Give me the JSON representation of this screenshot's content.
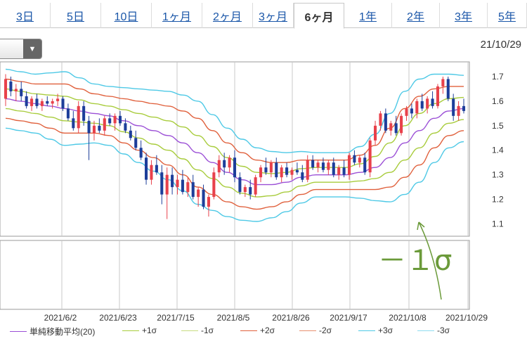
{
  "tabs": [
    {
      "label": "3日",
      "active": false
    },
    {
      "label": "5日",
      "active": false
    },
    {
      "label": "10日",
      "active": false
    },
    {
      "label": "1ヶ月",
      "active": false
    },
    {
      "label": "2ヶ月",
      "active": false
    },
    {
      "label": "3ヶ月",
      "active": false
    },
    {
      "label": "6ヶ月",
      "active": true
    },
    {
      "label": "1年",
      "active": false
    },
    {
      "label": "2年",
      "active": false
    },
    {
      "label": "3年",
      "active": false
    },
    {
      "label": "5年",
      "active": false
    }
  ],
  "header": {
    "date": "21/10/29",
    "select_arrow": "▼"
  },
  "annotation": {
    "text": "－１σ",
    "color": "#6b9a3a"
  },
  "colors": {
    "up": "#e8414b",
    "down": "#1d3e9a",
    "sma": "#9b4fd6",
    "s1": "#a8cc3c",
    "s2": "#e0603c",
    "s3": "#4ec9e6",
    "grid": "#c8c8c8",
    "frame": "#9a9a9a"
  },
  "legend": [
    {
      "label": "単純移動平均(20)",
      "color": "#9b4fd6"
    },
    {
      "label": "+1σ",
      "color": "#a8cc3c"
    },
    {
      "label": "-1σ",
      "color": "#c8dc80"
    },
    {
      "label": "+2σ",
      "color": "#e0603c"
    },
    {
      "label": "-2σ",
      "color": "#e89070"
    },
    {
      "label": "+3σ",
      "color": "#4ec9e6"
    },
    {
      "label": "-3σ",
      "color": "#8edcef"
    }
  ],
  "chart_data": {
    "type": "candlestick",
    "x_tick_labels": [
      "2021/6/2",
      "2021/6/23",
      "2021/7/15",
      "2021/8/5",
      "2021/8/26",
      "2021/9/17",
      "2021/10/8",
      "2021/10/29"
    ],
    "y_tick_labels": [
      "1.7",
      "1.6",
      "1.5",
      "1.4",
      "1.3",
      "1.2",
      "1.1"
    ],
    "ylim": [
      1.05,
      1.76
    ],
    "grid": true,
    "legend_position": "bottom",
    "sma20": [
      1.61,
      1.6,
      1.59,
      1.58,
      1.57,
      1.56,
      1.55,
      1.54,
      1.52,
      1.5,
      1.48,
      1.46,
      1.43,
      1.39,
      1.35,
      1.31,
      1.28,
      1.26,
      1.26,
      1.27,
      1.29,
      1.3,
      1.3,
      1.3,
      1.31,
      1.33,
      1.37,
      1.43,
      1.48,
      1.53,
      1.56,
      1.57
    ],
    "sigma": [
      0.04,
      0.04,
      0.04,
      0.045,
      0.05,
      0.045,
      0.04,
      0.04,
      0.045,
      0.05,
      0.055,
      0.06,
      0.065,
      0.07,
      0.065,
      0.06,
      0.055,
      0.05,
      0.045,
      0.04,
      0.035,
      0.03,
      0.03,
      0.03,
      0.035,
      0.045,
      0.06,
      0.07,
      0.07,
      0.06,
      0.05,
      0.045
    ],
    "candles": [
      {
        "o": 1.61,
        "h": 1.71,
        "l": 1.58,
        "c": 1.69
      },
      {
        "o": 1.68,
        "h": 1.7,
        "l": 1.62,
        "c": 1.64
      },
      {
        "o": 1.64,
        "h": 1.67,
        "l": 1.6,
        "c": 1.65
      },
      {
        "o": 1.65,
        "h": 1.68,
        "l": 1.6,
        "c": 1.62
      },
      {
        "o": 1.62,
        "h": 1.64,
        "l": 1.57,
        "c": 1.58
      },
      {
        "o": 1.58,
        "h": 1.62,
        "l": 1.56,
        "c": 1.61
      },
      {
        "o": 1.61,
        "h": 1.63,
        "l": 1.57,
        "c": 1.58
      },
      {
        "o": 1.58,
        "h": 1.61,
        "l": 1.56,
        "c": 1.6
      },
      {
        "o": 1.6,
        "h": 1.62,
        "l": 1.58,
        "c": 1.59
      },
      {
        "o": 1.59,
        "h": 1.61,
        "l": 1.57,
        "c": 1.6
      },
      {
        "o": 1.6,
        "h": 1.63,
        "l": 1.58,
        "c": 1.61
      },
      {
        "o": 1.61,
        "h": 1.62,
        "l": 1.56,
        "c": 1.57
      },
      {
        "o": 1.57,
        "h": 1.59,
        "l": 1.52,
        "c": 1.53
      },
      {
        "o": 1.53,
        "h": 1.56,
        "l": 1.48,
        "c": 1.49
      },
      {
        "o": 1.49,
        "h": 1.6,
        "l": 1.47,
        "c": 1.58
      },
      {
        "o": 1.58,
        "h": 1.6,
        "l": 1.5,
        "c": 1.52
      },
      {
        "o": 1.52,
        "h": 1.54,
        "l": 1.36,
        "c": 1.47
      },
      {
        "o": 1.47,
        "h": 1.52,
        "l": 1.44,
        "c": 1.5
      },
      {
        "o": 1.5,
        "h": 1.53,
        "l": 1.47,
        "c": 1.48
      },
      {
        "o": 1.48,
        "h": 1.54,
        "l": 1.46,
        "c": 1.53
      },
      {
        "o": 1.53,
        "h": 1.55,
        "l": 1.5,
        "c": 1.51
      },
      {
        "o": 1.51,
        "h": 1.55,
        "l": 1.48,
        "c": 1.54
      },
      {
        "o": 1.54,
        "h": 1.56,
        "l": 1.5,
        "c": 1.51
      },
      {
        "o": 1.51,
        "h": 1.53,
        "l": 1.47,
        "c": 1.48
      },
      {
        "o": 1.48,
        "h": 1.5,
        "l": 1.44,
        "c": 1.45
      },
      {
        "o": 1.45,
        "h": 1.48,
        "l": 1.4,
        "c": 1.41
      },
      {
        "o": 1.41,
        "h": 1.44,
        "l": 1.36,
        "c": 1.37
      },
      {
        "o": 1.37,
        "h": 1.39,
        "l": 1.26,
        "c": 1.28
      },
      {
        "o": 1.28,
        "h": 1.36,
        "l": 1.26,
        "c": 1.34
      },
      {
        "o": 1.34,
        "h": 1.38,
        "l": 1.3,
        "c": 1.31
      },
      {
        "o": 1.31,
        "h": 1.34,
        "l": 1.18,
        "c": 1.22
      },
      {
        "o": 1.22,
        "h": 1.33,
        "l": 1.12,
        "c": 1.3
      },
      {
        "o": 1.3,
        "h": 1.33,
        "l": 1.22,
        "c": 1.25
      },
      {
        "o": 1.25,
        "h": 1.3,
        "l": 1.22,
        "c": 1.28
      },
      {
        "o": 1.28,
        "h": 1.32,
        "l": 1.22,
        "c": 1.23
      },
      {
        "o": 1.23,
        "h": 1.29,
        "l": 1.21,
        "c": 1.27
      },
      {
        "o": 1.27,
        "h": 1.3,
        "l": 1.2,
        "c": 1.21
      },
      {
        "o": 1.21,
        "h": 1.25,
        "l": 1.17,
        "c": 1.24
      },
      {
        "o": 1.24,
        "h": 1.26,
        "l": 1.16,
        "c": 1.17
      },
      {
        "o": 1.17,
        "h": 1.22,
        "l": 1.13,
        "c": 1.21
      },
      {
        "o": 1.21,
        "h": 1.33,
        "l": 1.2,
        "c": 1.31
      },
      {
        "o": 1.31,
        "h": 1.38,
        "l": 1.29,
        "c": 1.36
      },
      {
        "o": 1.36,
        "h": 1.39,
        "l": 1.3,
        "c": 1.33
      },
      {
        "o": 1.33,
        "h": 1.38,
        "l": 1.31,
        "c": 1.37
      },
      {
        "o": 1.37,
        "h": 1.4,
        "l": 1.27,
        "c": 1.29
      },
      {
        "o": 1.29,
        "h": 1.31,
        "l": 1.22,
        "c": 1.23
      },
      {
        "o": 1.23,
        "h": 1.26,
        "l": 1.21,
        "c": 1.25
      },
      {
        "o": 1.25,
        "h": 1.28,
        "l": 1.2,
        "c": 1.22
      },
      {
        "o": 1.22,
        "h": 1.3,
        "l": 1.21,
        "c": 1.29
      },
      {
        "o": 1.29,
        "h": 1.34,
        "l": 1.27,
        "c": 1.33
      },
      {
        "o": 1.33,
        "h": 1.37,
        "l": 1.3,
        "c": 1.31
      },
      {
        "o": 1.31,
        "h": 1.36,
        "l": 1.29,
        "c": 1.35
      },
      {
        "o": 1.35,
        "h": 1.37,
        "l": 1.28,
        "c": 1.29
      },
      {
        "o": 1.29,
        "h": 1.34,
        "l": 1.27,
        "c": 1.33
      },
      {
        "o": 1.33,
        "h": 1.35,
        "l": 1.29,
        "c": 1.3
      },
      {
        "o": 1.3,
        "h": 1.33,
        "l": 1.28,
        "c": 1.32
      },
      {
        "o": 1.32,
        "h": 1.35,
        "l": 1.3,
        "c": 1.31
      },
      {
        "o": 1.31,
        "h": 1.34,
        "l": 1.27,
        "c": 1.28
      },
      {
        "o": 1.28,
        "h": 1.38,
        "l": 1.27,
        "c": 1.36
      },
      {
        "o": 1.36,
        "h": 1.38,
        "l": 1.32,
        "c": 1.33
      },
      {
        "o": 1.33,
        "h": 1.36,
        "l": 1.31,
        "c": 1.35
      },
      {
        "o": 1.35,
        "h": 1.37,
        "l": 1.31,
        "c": 1.32
      },
      {
        "o": 1.32,
        "h": 1.36,
        "l": 1.3,
        "c": 1.35
      },
      {
        "o": 1.35,
        "h": 1.37,
        "l": 1.29,
        "c": 1.3
      },
      {
        "o": 1.3,
        "h": 1.34,
        "l": 1.28,
        "c": 1.33
      },
      {
        "o": 1.33,
        "h": 1.36,
        "l": 1.29,
        "c": 1.3
      },
      {
        "o": 1.3,
        "h": 1.39,
        "l": 1.28,
        "c": 1.38
      },
      {
        "o": 1.38,
        "h": 1.4,
        "l": 1.34,
        "c": 1.35
      },
      {
        "o": 1.35,
        "h": 1.38,
        "l": 1.33,
        "c": 1.37
      },
      {
        "o": 1.37,
        "h": 1.39,
        "l": 1.3,
        "c": 1.31
      },
      {
        "o": 1.31,
        "h": 1.45,
        "l": 1.29,
        "c": 1.44
      },
      {
        "o": 1.44,
        "h": 1.52,
        "l": 1.42,
        "c": 1.5
      },
      {
        "o": 1.5,
        "h": 1.56,
        "l": 1.48,
        "c": 1.55
      },
      {
        "o": 1.55,
        "h": 1.57,
        "l": 1.47,
        "c": 1.48
      },
      {
        "o": 1.48,
        "h": 1.52,
        "l": 1.46,
        "c": 1.51
      },
      {
        "o": 1.51,
        "h": 1.54,
        "l": 1.46,
        "c": 1.47
      },
      {
        "o": 1.47,
        "h": 1.55,
        "l": 1.46,
        "c": 1.54
      },
      {
        "o": 1.54,
        "h": 1.58,
        "l": 1.52,
        "c": 1.57
      },
      {
        "o": 1.57,
        "h": 1.59,
        "l": 1.53,
        "c": 1.55
      },
      {
        "o": 1.55,
        "h": 1.61,
        "l": 1.53,
        "c": 1.6
      },
      {
        "o": 1.6,
        "h": 1.63,
        "l": 1.56,
        "c": 1.57
      },
      {
        "o": 1.57,
        "h": 1.62,
        "l": 1.55,
        "c": 1.61
      },
      {
        "o": 1.61,
        "h": 1.64,
        "l": 1.57,
        "c": 1.58
      },
      {
        "o": 1.58,
        "h": 1.67,
        "l": 1.57,
        "c": 1.66
      },
      {
        "o": 1.66,
        "h": 1.7,
        "l": 1.63,
        "c": 1.69
      },
      {
        "o": 1.69,
        "h": 1.7,
        "l": 1.6,
        "c": 1.61
      },
      {
        "o": 1.61,
        "h": 1.63,
        "l": 1.52,
        "c": 1.54
      },
      {
        "o": 1.54,
        "h": 1.6,
        "l": 1.52,
        "c": 1.58
      },
      {
        "o": 1.58,
        "h": 1.61,
        "l": 1.55,
        "c": 1.56
      }
    ]
  }
}
